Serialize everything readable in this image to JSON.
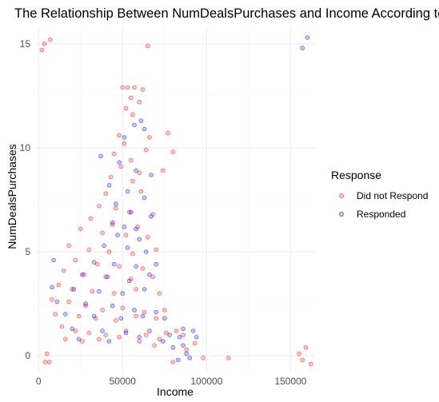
{
  "chart_data": {
    "type": "scatter",
    "title": "The Relationship Between NumDealsPurchases and Income According to Response",
    "xlabel": "Income",
    "ylabel": "NumDealsPurchases",
    "xlim": [
      -2000,
      165000
    ],
    "ylim": [
      -0.8,
      15.8
    ],
    "x_ticks": [
      0,
      50000,
      100000,
      150000
    ],
    "x_tick_labels": [
      "0",
      "50000",
      "100000",
      "150000"
    ],
    "y_ticks": [
      0,
      5,
      10,
      15
    ],
    "y_tick_labels": [
      "0",
      "5",
      "10",
      "15"
    ],
    "grid": true,
    "jitter": true,
    "legend": {
      "title": "Response",
      "position": "right"
    },
    "series": [
      {
        "name": "Did not Respond",
        "color": "#ff0000",
        "points": [
          [
            2000,
            14.7
          ],
          [
            3500,
            15.0
          ],
          [
            7000,
            15.2
          ],
          [
            65000,
            14.9
          ],
          [
            50000,
            12.9
          ],
          [
            53000,
            12.9
          ],
          [
            57000,
            12.9
          ],
          [
            62000,
            12.8
          ],
          [
            55000,
            12.4
          ],
          [
            60000,
            12.2
          ],
          [
            52000,
            11.9
          ],
          [
            56000,
            11.6
          ],
          [
            48000,
            10.6
          ],
          [
            66000,
            10.5
          ],
          [
            77000,
            10.7
          ],
          [
            51000,
            10.2
          ],
          [
            64000,
            9.9
          ],
          [
            80000,
            9.8
          ],
          [
            45000,
            9.7
          ],
          [
            55000,
            9.4
          ],
          [
            49000,
            9.1
          ],
          [
            60000,
            8.8
          ],
          [
            74000,
            8.9
          ],
          [
            43000,
            8.6
          ],
          [
            56000,
            8.4
          ],
          [
            40000,
            7.8
          ],
          [
            61000,
            7.9
          ],
          [
            36000,
            7.2
          ],
          [
            46000,
            7.1
          ],
          [
            54000,
            6.9
          ],
          [
            68000,
            6.8
          ],
          [
            31000,
            6.6
          ],
          [
            44000,
            6.3
          ],
          [
            59000,
            6.2
          ],
          [
            25000,
            6.1
          ],
          [
            38000,
            5.9
          ],
          [
            52000,
            5.8
          ],
          [
            65000,
            5.7
          ],
          [
            18000,
            5.3
          ],
          [
            30000,
            5.1
          ],
          [
            42000,
            5.0
          ],
          [
            56000,
            4.9
          ],
          [
            70000,
            5.1
          ],
          [
            22000,
            4.6
          ],
          [
            35000,
            4.4
          ],
          [
            48000,
            4.3
          ],
          [
            62000,
            4.2
          ],
          [
            15000,
            4.1
          ],
          [
            27000,
            3.9
          ],
          [
            40000,
            3.8
          ],
          [
            55000,
            3.7
          ],
          [
            68000,
            3.8
          ],
          [
            12000,
            3.4
          ],
          [
            20000,
            3.2
          ],
          [
            32000,
            3.1
          ],
          [
            45000,
            3.0
          ],
          [
            58000,
            3.2
          ],
          [
            72000,
            3.0
          ],
          [
            8000,
            2.7
          ],
          [
            18000,
            2.6
          ],
          [
            28000,
            2.4
          ],
          [
            38000,
            2.2
          ],
          [
            50000,
            2.3
          ],
          [
            63000,
            2.1
          ],
          [
            75000,
            2.2
          ],
          [
            10000,
            2.0
          ],
          [
            24000,
            1.9
          ],
          [
            34000,
            1.8
          ],
          [
            46000,
            1.7
          ],
          [
            58000,
            1.9
          ],
          [
            70000,
            1.8
          ],
          [
            14000,
            1.4
          ],
          [
            22000,
            1.2
          ],
          [
            30000,
            1.1
          ],
          [
            40000,
            1.0
          ],
          [
            52000,
            1.2
          ],
          [
            64000,
            1.0
          ],
          [
            76000,
            1.1
          ],
          [
            86000,
            1.0
          ],
          [
            16000,
            0.8
          ],
          [
            26000,
            0.7
          ],
          [
            36000,
            0.8
          ],
          [
            48000,
            0.9
          ],
          [
            60000,
            0.7
          ],
          [
            72000,
            0.8
          ],
          [
            82000,
            1.2
          ],
          [
            5000,
            0.1
          ],
          [
            4000,
            -0.3
          ],
          [
            6500,
            -0.3
          ],
          [
            80000,
            -0.3
          ],
          [
            98000,
            -0.1
          ],
          [
            113000,
            -0.1
          ],
          [
            155000,
            0.1
          ],
          [
            157000,
            -0.2
          ],
          [
            162000,
            -0.4
          ],
          [
            159000,
            0.4
          ],
          [
            93000,
            0.6
          ],
          [
            88000,
            0.3
          ],
          [
            69000,
            0.5
          ]
        ]
      },
      {
        "name": "Responded",
        "color": "#0000ff",
        "points": [
          [
            157000,
            14.8
          ],
          [
            160000,
            15.3
          ],
          [
            57000,
            11.1
          ],
          [
            61000,
            11.3
          ],
          [
            63000,
            10.9
          ],
          [
            51000,
            10.5
          ],
          [
            37000,
            9.6
          ],
          [
            48000,
            9.3
          ],
          [
            58000,
            8.9
          ],
          [
            67000,
            8.7
          ],
          [
            42000,
            8.2
          ],
          [
            53000,
            7.9
          ],
          [
            63000,
            7.6
          ],
          [
            46000,
            7.3
          ],
          [
            55000,
            6.9
          ],
          [
            67000,
            6.7
          ],
          [
            44000,
            6.4
          ],
          [
            51000,
            6.2
          ],
          [
            58000,
            6.1
          ],
          [
            47000,
            5.8
          ],
          [
            60000,
            5.6
          ],
          [
            39000,
            5.3
          ],
          [
            53000,
            5.2
          ],
          [
            64000,
            5.0
          ],
          [
            9000,
            4.6
          ],
          [
            33000,
            4.5
          ],
          [
            45000,
            4.4
          ],
          [
            58000,
            4.3
          ],
          [
            70000,
            4.4
          ],
          [
            26000,
            3.9
          ],
          [
            41000,
            3.8
          ],
          [
            54000,
            3.6
          ],
          [
            66000,
            3.9
          ],
          [
            8000,
            3.3
          ],
          [
            21000,
            3.2
          ],
          [
            36000,
            3.1
          ],
          [
            50000,
            3.0
          ],
          [
            63000,
            3.2
          ],
          [
            11000,
            2.6
          ],
          [
            28000,
            2.5
          ],
          [
            44000,
            2.4
          ],
          [
            57000,
            2.2
          ],
          [
            70000,
            2.1
          ],
          [
            16000,
            2.0
          ],
          [
            33000,
            1.9
          ],
          [
            49000,
            1.8
          ],
          [
            62000,
            1.9
          ],
          [
            75000,
            1.8
          ],
          [
            20000,
            1.3
          ],
          [
            38000,
            1.2
          ],
          [
            52000,
            1.1
          ],
          [
            66000,
            1.2
          ],
          [
            78000,
            1.0
          ],
          [
            86000,
            1.3
          ],
          [
            92000,
            1.2
          ],
          [
            24000,
            0.8
          ],
          [
            42000,
            0.7
          ],
          [
            60000,
            0.9
          ],
          [
            74000,
            0.7
          ],
          [
            84000,
            0.9
          ],
          [
            94000,
            0.9
          ],
          [
            80000,
            0.4
          ],
          [
            88000,
            0.1
          ],
          [
            83000,
            -0.2
          ],
          [
            90000,
            -0.1
          ],
          [
            86000,
            0.5
          ]
        ]
      }
    ]
  }
}
